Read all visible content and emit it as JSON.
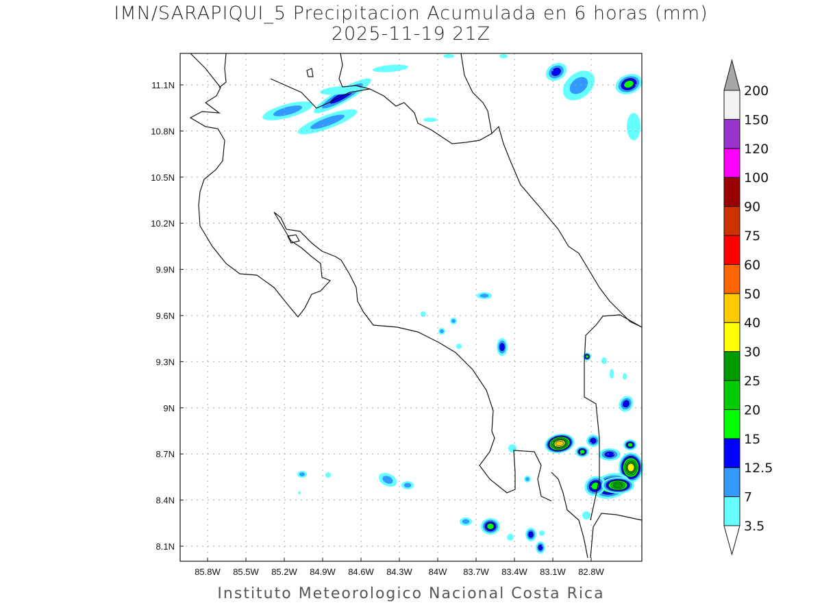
{
  "title": {
    "line1": "IMN/SARAPIQUI_5 Precipitacion Acumulada en 6 horas (mm)",
    "line2": "2025-11-19 21Z"
  },
  "footer": "Instituto Meteorologico Nacional Costa Rica",
  "axes": {
    "lat_ticks": [
      "11.1N",
      "10.8N",
      "10.5N",
      "10.2N",
      "9.9N",
      "9.6N",
      "9.3N",
      "9N",
      "8.7N",
      "8.4N",
      "8.1N"
    ],
    "lon_ticks": [
      "85.8W",
      "85.5W",
      "85.2W",
      "84.9W",
      "84.6W",
      "84.3W",
      "84W",
      "83.7W",
      "83.4W",
      "83.1W",
      "82.8W"
    ]
  },
  "colorbar": {
    "labels": [
      "3.5",
      "7",
      "12.5",
      "15",
      "20",
      "25",
      "30",
      "40",
      "50",
      "60",
      "75",
      "90",
      "100",
      "120",
      "150",
      "200"
    ],
    "colors": [
      "#66ffff",
      "#3399ff",
      "#0000ff",
      "#00ff00",
      "#00cc00",
      "#009900",
      "#ffff00",
      "#ffcc00",
      "#ff6600",
      "#ff0000",
      "#cc3300",
      "#990000",
      "#ff00ff",
      "#9933cc",
      "#f2f2f2"
    ],
    "over_color": "#a6a6a6",
    "under_color": "#ffffff"
  }
}
